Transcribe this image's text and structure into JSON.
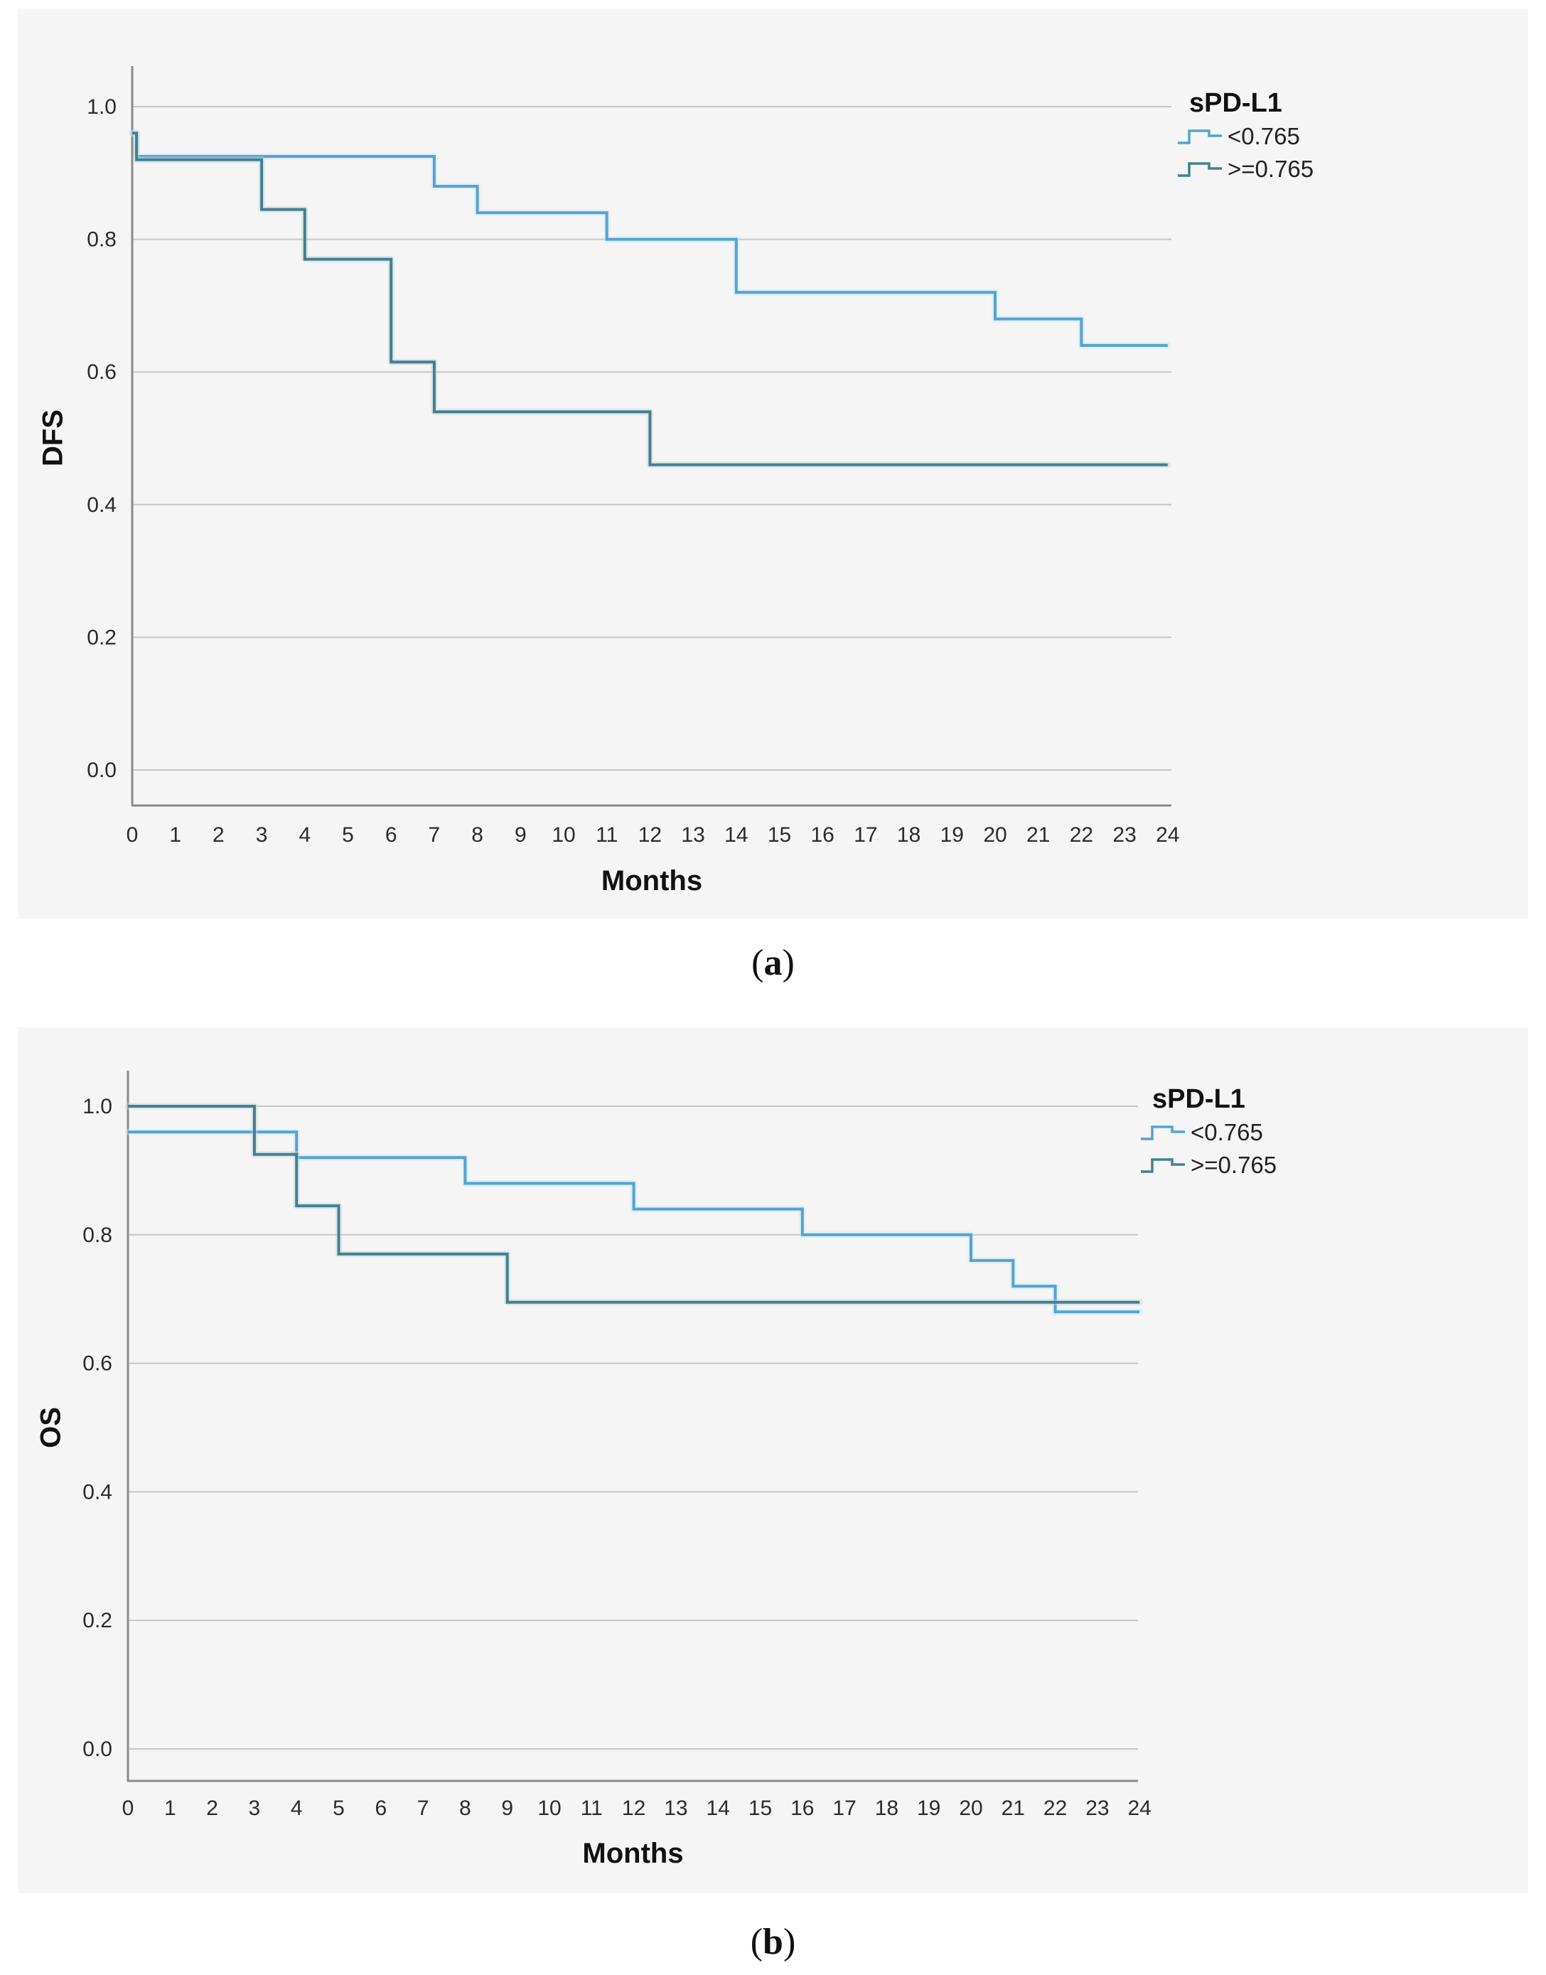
{
  "captions": {
    "a": {
      "open": "(",
      "letter": "a",
      "close": ")"
    },
    "b": {
      "open": "(",
      "letter": "b",
      "close": ")"
    }
  },
  "colors": {
    "panel_background": "#f4f5f4",
    "gridline": "#c7c7c7",
    "axis": "#8a8a8a",
    "series_low": "#54a3d1",
    "series_low_halo": "#c9e6f4",
    "series_high": "#43808f",
    "series_high_halo": "#c2d4d9"
  },
  "charts": [
    {
      "id": "a",
      "y_axis_label": "DFS",
      "x_axis_label": "Months",
      "legend": {
        "title": "sPD-L1",
        "items": [
          {
            "label": "<0.765",
            "color": "#54a3d1"
          },
          {
            "label": ">=0.765",
            "color": "#43808f"
          }
        ]
      },
      "chart_data": {
        "type": "line",
        "subtype": "kaplan-meier-step",
        "title": "",
        "xlabel": "Months",
        "ylabel": "DFS",
        "xlim": [
          0,
          24
        ],
        "ylim": [
          0.0,
          1.05
        ],
        "grid": "horizontal",
        "legend_position": "top-right",
        "x_ticks": [
          0,
          1,
          2,
          3,
          4,
          5,
          6,
          7,
          8,
          9,
          10,
          11,
          12,
          13,
          14,
          15,
          16,
          17,
          18,
          19,
          20,
          21,
          22,
          23,
          24
        ],
        "y_ticks": [
          {
            "v": 1.0,
            "label": "1.0"
          },
          {
            "v": 0.8,
            "label": "0.8"
          },
          {
            "v": 0.6,
            "label": "0.6"
          },
          {
            "v": 0.4,
            "label": "0.4"
          },
          {
            "v": 0.2,
            "label": "0.2"
          },
          {
            "v": 0.0,
            "label": "0.0"
          }
        ],
        "series": [
          {
            "name": "<0.765",
            "color": "#54a3d1",
            "halo": "#c9e6f4",
            "steps": [
              [
                0,
                0.96
              ],
              [
                0.1,
                0.925
              ],
              [
                7,
                0.88
              ],
              [
                8,
                0.84
              ],
              [
                11,
                0.8
              ],
              [
                14,
                0.72
              ],
              [
                20,
                0.68
              ],
              [
                22,
                0.64
              ],
              [
                24,
                0.64
              ]
            ]
          },
          {
            "name": ">=0.765",
            "color": "#43808f",
            "halo": "#c2d4d9",
            "steps": [
              [
                0,
                0.96
              ],
              [
                0.1,
                0.92
              ],
              [
                3,
                0.845
              ],
              [
                4,
                0.77
              ],
              [
                6,
                0.615
              ],
              [
                7,
                0.54
              ],
              [
                12,
                0.46
              ],
              [
                24,
                0.46
              ]
            ]
          }
        ]
      }
    },
    {
      "id": "b",
      "y_axis_label": "OS",
      "x_axis_label": "Months",
      "legend": {
        "title": "sPD-L1",
        "items": [
          {
            "label": "<0.765",
            "color": "#54a3d1"
          },
          {
            "label": ">=0.765",
            "color": "#43808f"
          }
        ]
      },
      "chart_data": {
        "type": "line",
        "subtype": "kaplan-meier-step",
        "title": "",
        "xlabel": "Months",
        "ylabel": "OS",
        "xlim": [
          0,
          24
        ],
        "ylim": [
          0.0,
          1.05
        ],
        "grid": "horizontal",
        "legend_position": "top-right",
        "x_ticks": [
          0,
          1,
          2,
          3,
          4,
          5,
          6,
          7,
          8,
          9,
          10,
          11,
          12,
          13,
          14,
          15,
          16,
          17,
          18,
          19,
          20,
          21,
          22,
          23,
          24
        ],
        "y_ticks": [
          {
            "v": 1.0,
            "label": "1.0"
          },
          {
            "v": 0.8,
            "label": "0.8"
          },
          {
            "v": 0.6,
            "label": "0.6"
          },
          {
            "v": 0.4,
            "label": "0.4"
          },
          {
            "v": 0.2,
            "label": "0.2"
          },
          {
            "v": 0.0,
            "label": "0.0"
          }
        ],
        "series": [
          {
            "name": "<0.765",
            "color": "#54a3d1",
            "halo": "#c9e6f4",
            "steps": [
              [
                0,
                0.96
              ],
              [
                4,
                0.92
              ],
              [
                8,
                0.88
              ],
              [
                12,
                0.84
              ],
              [
                16,
                0.8
              ],
              [
                20,
                0.76
              ],
              [
                21,
                0.72
              ],
              [
                22,
                0.68
              ],
              [
                24,
                0.68
              ]
            ]
          },
          {
            "name": ">=0.765",
            "color": "#43808f",
            "halo": "#c2d4d9",
            "steps": [
              [
                0,
                1.0
              ],
              [
                3,
                0.925
              ],
              [
                4,
                0.845
              ],
              [
                5,
                0.77
              ],
              [
                9,
                0.695
              ],
              [
                24,
                0.695
              ]
            ]
          }
        ]
      }
    }
  ]
}
